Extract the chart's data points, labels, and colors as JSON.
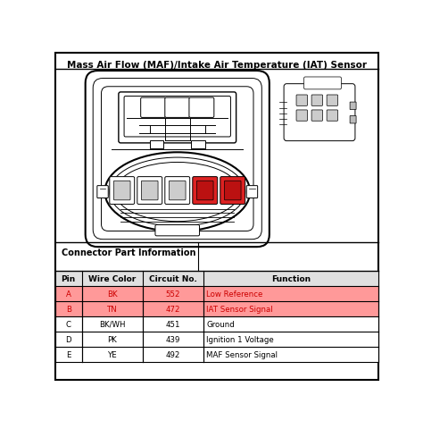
{
  "title": "Mass Air Flow (MAF)/Intake Air Temperature (IAT) Sensor",
  "bg_color": "#ffffff",
  "border_color": "#000000",
  "table_header": [
    "Pin",
    "Wire Color",
    "Circuit No.",
    "Function"
  ],
  "table_rows": [
    [
      "A",
      "BK",
      "552",
      "Low Reference"
    ],
    [
      "B",
      "TN",
      "472",
      "IAT Sensor Signal"
    ],
    [
      "C",
      "BK/WH",
      "451",
      "Ground"
    ],
    [
      "D",
      "PK",
      "439",
      "Ignition 1 Voltage"
    ],
    [
      "E",
      "YE",
      "492",
      "MAF Sensor Signal"
    ]
  ],
  "highlighted_rows": [
    0,
    1
  ],
  "highlight_color": "#ff9999",
  "connector_info_label": "Connector Part Information",
  "diagram_bg": "#f5f5f5",
  "gray_light": "#d0d0d0",
  "gray_mid": "#b0b0b0",
  "gray_dark": "#888888",
  "red_pin": "#cc2222",
  "red_pin_inner": "#aa1111"
}
